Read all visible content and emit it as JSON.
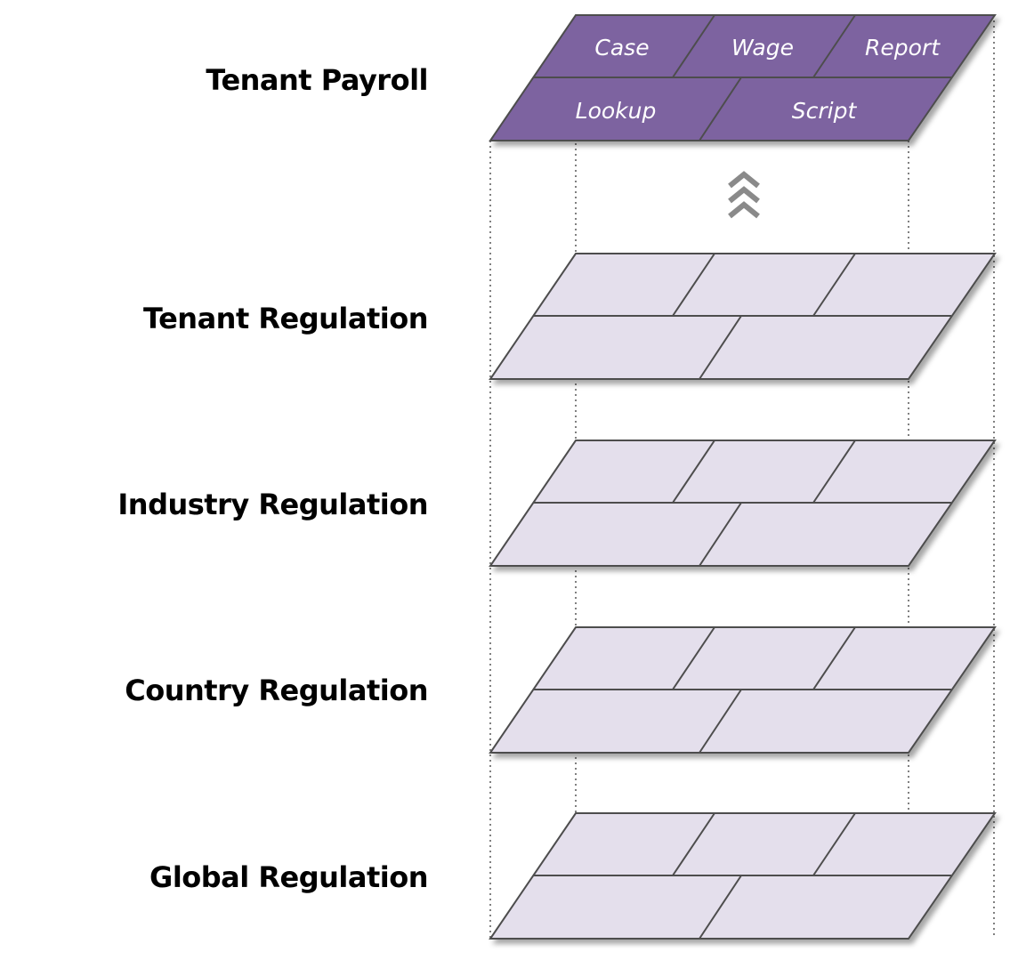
{
  "colors": {
    "active_fill": "#7d63a0",
    "inactive_fill": "#e4dfec",
    "outline": "#4d4d4d",
    "active_text": "#ffffff",
    "arrow": "#8a8a8a",
    "guide": "#808080"
  },
  "layers": [
    {
      "label": "Tenant Payroll",
      "active": true
    },
    {
      "label": "Tenant Regulation",
      "active": false
    },
    {
      "label": "Industry Regulation",
      "active": false
    },
    {
      "label": "Country Regulation",
      "active": false
    },
    {
      "label": "Global Regulation",
      "active": false
    }
  ],
  "cells": {
    "top_row": [
      "Case",
      "Wage",
      "Report"
    ],
    "bottom_row": [
      "Lookup",
      "Script"
    ]
  },
  "arrow_icon": "chevrons-up-icon"
}
